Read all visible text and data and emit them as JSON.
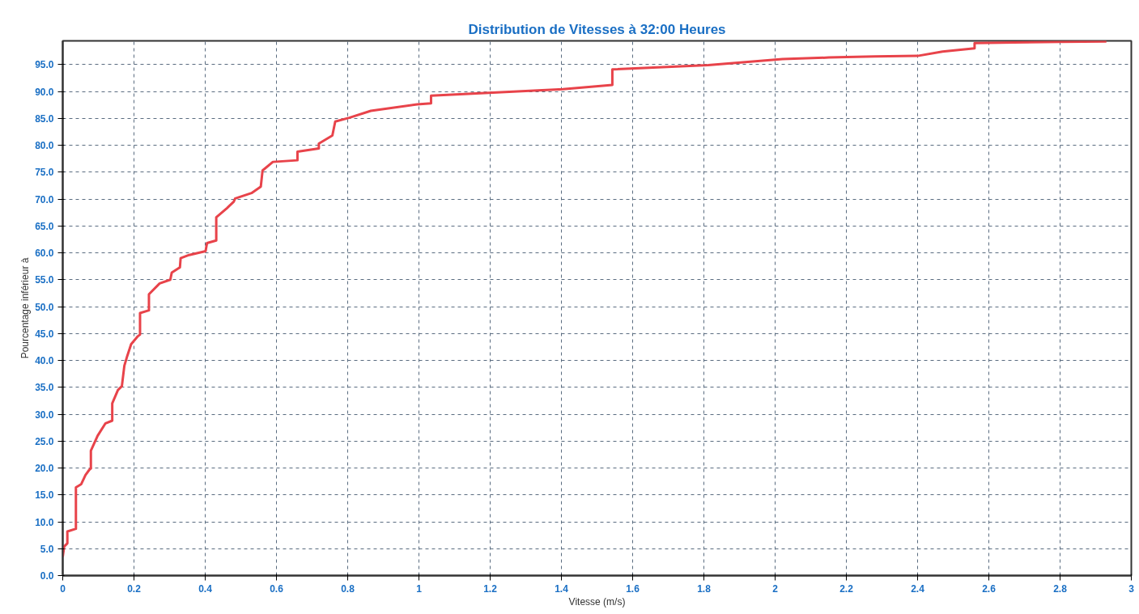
{
  "chart_data": {
    "type": "line",
    "title": "Distribution de Vitesses à 32:00 Heures",
    "xlabel": "Vitesse (m/s)",
    "ylabel": "Pourcentage inférieur à",
    "x": [
      0,
      0.004,
      0.013,
      0.013,
      0.037,
      0.037,
      0.052,
      0.064,
      0.075,
      0.079,
      0.079,
      0.098,
      0.12,
      0.139,
      0.139,
      0.155,
      0.166,
      0.173,
      0.181,
      0.192,
      0.211,
      0.217,
      0.217,
      0.242,
      0.242,
      0.272,
      0.302,
      0.306,
      0.329,
      0.331,
      0.355,
      0.401,
      0.405,
      0.431,
      0.431,
      0.461,
      0.48,
      0.484,
      0.53,
      0.556,
      0.561,
      0.59,
      0.659,
      0.659,
      0.719,
      0.719,
      0.757,
      0.765,
      0.804,
      0.865,
      0.995,
      1.034,
      1.034,
      1.404,
      1.543,
      1.543,
      1.812,
      2.021,
      2.151,
      2.28,
      2.4,
      2.47,
      2.56,
      2.56,
      2.67,
      2.8,
      2.93
    ],
    "series": [
      {
        "color": "#e8434a",
        "values": [
          3.5,
          5.4,
          6.0,
          8.2,
          8.7,
          16.4,
          17.0,
          18.7,
          19.7,
          19.9,
          23.2,
          26.0,
          28.3,
          28.8,
          32.0,
          34.5,
          35.2,
          39.0,
          40.8,
          43.0,
          44.5,
          44.8,
          48.8,
          49.3,
          52.3,
          54.3,
          55.0,
          56.3,
          57.3,
          59.0,
          59.6,
          60.3,
          61.8,
          62.3,
          66.6,
          68.3,
          69.5,
          70.1,
          71.1,
          72.3,
          75.3,
          76.9,
          77.2,
          78.8,
          79.4,
          80.3,
          81.8,
          84.4,
          85.1,
          86.4,
          87.6,
          87.8,
          89.2,
          90.4,
          91.2,
          94.1,
          94.9,
          96.0,
          96.3,
          96.5,
          96.6,
          97.4,
          98.0,
          99.0,
          99.1,
          99.2,
          99.3
        ]
      }
    ],
    "xlim": [
      0,
      3
    ],
    "xticks": [
      0,
      0.2,
      0.4,
      0.6,
      0.8,
      1,
      1.2,
      1.4,
      1.6,
      1.8,
      2,
      2.2,
      2.4,
      2.6,
      2.8,
      3
    ],
    "ylim": [
      0,
      99.4
    ],
    "yticks": [
      {
        "value": 0,
        "label": "0.0"
      },
      {
        "value": 5,
        "label": "5.0"
      },
      {
        "value": 10,
        "label": "10.0"
      },
      {
        "value": 15,
        "label": "15.0"
      },
      {
        "value": 20,
        "label": "20.0"
      },
      {
        "value": 25,
        "label": "25.0"
      },
      {
        "value": 30,
        "label": "30.0"
      },
      {
        "value": 35,
        "label": "35.0"
      },
      {
        "value": 40,
        "label": "40.0"
      },
      {
        "value": 45,
        "label": "45.0"
      },
      {
        "value": 50,
        "label": "50.0"
      },
      {
        "value": 55,
        "label": "55.0"
      },
      {
        "value": 60,
        "label": "60.0"
      },
      {
        "value": 65,
        "label": "65.0"
      },
      {
        "value": 70,
        "label": "70.0"
      },
      {
        "value": 75,
        "label": "75.0"
      },
      {
        "value": 80,
        "label": "80.0"
      },
      {
        "value": 85,
        "label": "85.0"
      },
      {
        "value": 90,
        "label": "90.0"
      },
      {
        "value": 95,
        "label": "95.0"
      }
    ],
    "grid": true,
    "marker": "none",
    "line_style": "solid"
  }
}
